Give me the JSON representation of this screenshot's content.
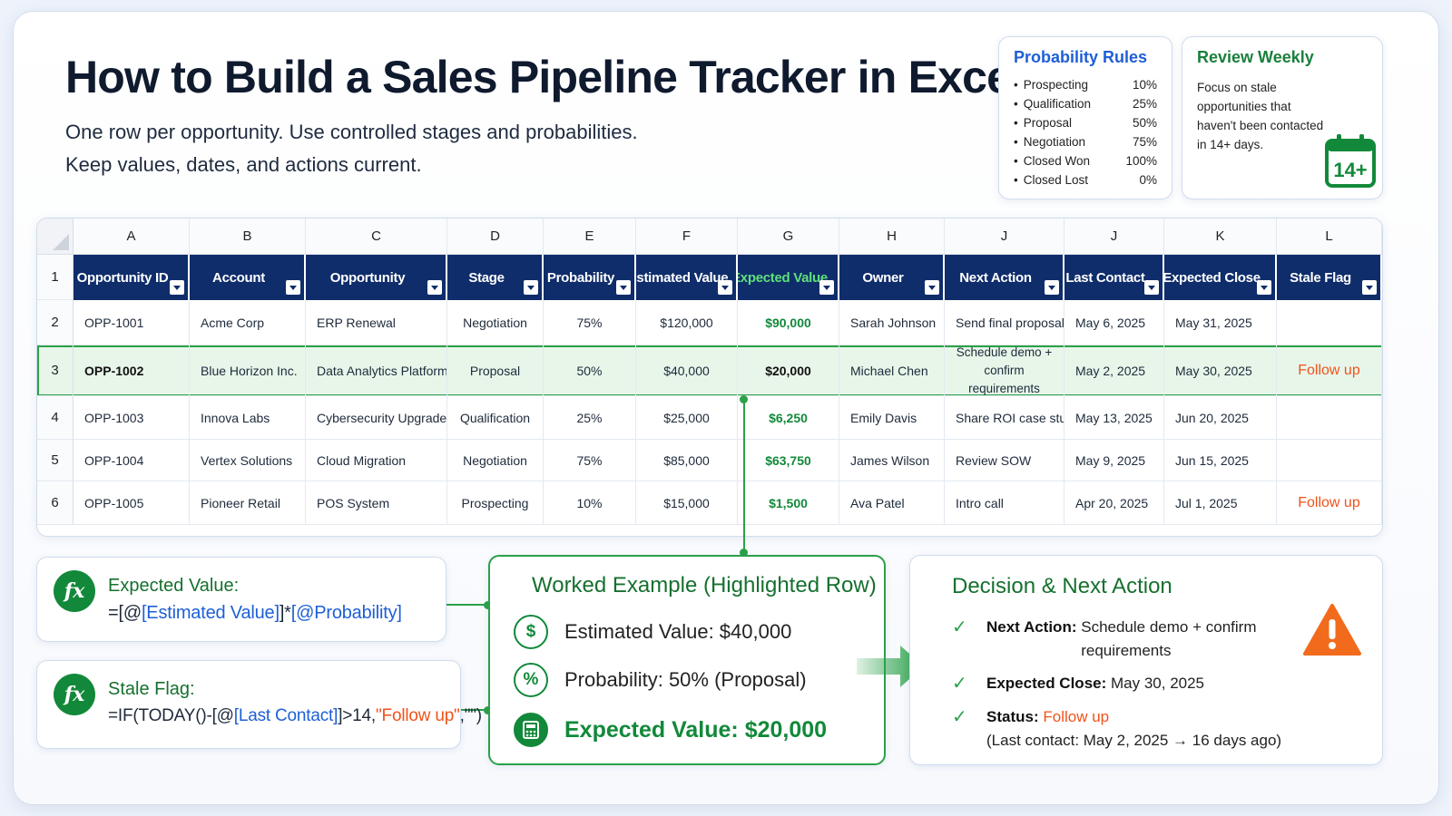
{
  "title": "How to Build a Sales Pipeline Tracker in Excel",
  "subtitle_line1": "One row per opportunity. Use controlled stages and probabilities.",
  "subtitle_line2": "Keep values, dates, and actions current.",
  "probability_rules": {
    "title": "Probability Rules",
    "items": [
      {
        "stage": "Prospecting",
        "pct": "10%"
      },
      {
        "stage": "Qualification",
        "pct": "25%"
      },
      {
        "stage": "Proposal",
        "pct": "50%"
      },
      {
        "stage": "Negotiation",
        "pct": "75%"
      },
      {
        "stage": "Closed Won",
        "pct": "100%"
      },
      {
        "stage": "Closed Lost",
        "pct": "0%"
      }
    ]
  },
  "review_weekly": {
    "title": "Review Weekly",
    "text": "Focus on stale opportunities that haven't been contacted in 14+ days.",
    "icon": "calendar-icon",
    "icon_label": "14+"
  },
  "sheet": {
    "column_letters": [
      "A",
      "B",
      "C",
      "D",
      "E",
      "F",
      "G",
      "H",
      "J",
      "J",
      "K",
      "L"
    ],
    "header_row_number": "1",
    "headers": [
      "Opportunity ID",
      "Account",
      "Opportunity",
      "Stage",
      "Probability",
      "Estimated Value",
      "Expected Value",
      "Owner",
      "Next Action",
      "Last Contact",
      "Expected Close",
      "Stale Flag"
    ],
    "rows": [
      {
        "num": "2",
        "cells": [
          "OPP-1001",
          "Acme Corp",
          "ERP Renewal",
          "Negotiation",
          "75%",
          "$120,000",
          "$90,000",
          "Sarah Johnson",
          "Send final proposal",
          "May 6, 2025",
          "May 31, 2025",
          ""
        ]
      },
      {
        "num": "3",
        "cells": [
          "OPP-1002",
          "Blue Horizon Inc.",
          "Data Analytics Platform",
          "Proposal",
          "50%",
          "$40,000",
          "$20,000",
          "Michael Chen",
          "Schedule demo + confirm requirements",
          "May 2, 2025",
          "May 30, 2025",
          "Follow up"
        ]
      },
      {
        "num": "4",
        "cells": [
          "OPP-1003",
          "Innova Labs",
          "Cybersecurity Upgrade",
          "Qualification",
          "25%",
          "$25,000",
          "$6,250",
          "Emily Davis",
          "Share ROI case study",
          "May 13, 2025",
          "Jun 20, 2025",
          ""
        ]
      },
      {
        "num": "5",
        "cells": [
          "OPP-1004",
          "Vertex Solutions",
          "Cloud Migration",
          "Negotiation",
          "75%",
          "$85,000",
          "$63,750",
          "James Wilson",
          "Review SOW",
          "May 9, 2025",
          "Jun 15, 2025",
          ""
        ]
      },
      {
        "num": "6",
        "cells": [
          "OPP-1005",
          "Pioneer Retail",
          "POS System",
          "Prospecting",
          "10%",
          "$15,000",
          "$1,500",
          "Ava Patel",
          "Intro call",
          "Apr 20, 2025",
          "Jul 1, 2025",
          "Follow up"
        ]
      }
    ],
    "highlighted_row_index": 1
  },
  "formulas": {
    "expected_value": {
      "label": "Expected Value:",
      "icon": "fx-icon",
      "parts": [
        "=[@",
        "[Estimated Value]",
        "]*",
        "[@Probability]",
        ""
      ]
    },
    "stale_flag": {
      "label": "Stale Flag:",
      "icon": "fx-icon",
      "parts": [
        "=IF(TODAY()-[@",
        "[Last Contact]",
        "]>14,",
        "\"Follow up\"",
        ",\"\")"
      ]
    }
  },
  "worked_example": {
    "title": "Worked Example (Highlighted Row)",
    "estimated": "Estimated Value: $40,000",
    "probability": "Probability: 50% (Proposal)",
    "expected": "Expected Value: $20,000",
    "icons": [
      "dollar-icon",
      "percent-icon",
      "calculator-icon"
    ]
  },
  "decision": {
    "title": "Decision & Next Action",
    "next_action_label": "Next Action:",
    "next_action_value": "Schedule demo + confirm requirements",
    "expected_close_label": "Expected Close:",
    "expected_close_value": "May 30, 2025",
    "status_label": "Status:",
    "status_value": "Follow up",
    "status_note": "(Last contact: May 2, 2025 → 16 days ago)",
    "icon": "warning-icon"
  },
  "colors": {
    "header_navy": "#0f2d6b",
    "green": "#12893a",
    "accent_blue": "#1e5fd6",
    "orange": "#f0521b"
  }
}
